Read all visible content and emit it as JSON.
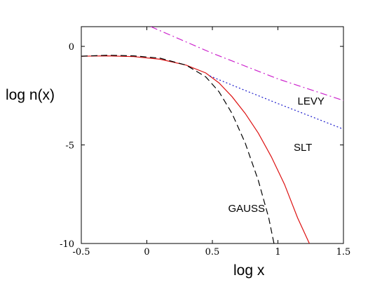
{
  "chart_data": {
    "type": "line",
    "xlabel": "log x",
    "ylabel": "log n(x)",
    "xlim": [
      -0.5,
      1.5
    ],
    "ylim": [
      -10,
      1
    ],
    "xticks": [
      {
        "value": -0.5,
        "label": "-0.5"
      },
      {
        "value": 0,
        "label": "0"
      },
      {
        "value": 0.5,
        "label": "0.5"
      },
      {
        "value": 1,
        "label": "1"
      },
      {
        "value": 1.5,
        "label": "1.5"
      }
    ],
    "yticks": [
      {
        "value": 0,
        "label": "0"
      },
      {
        "value": -5,
        "label": "-5"
      },
      {
        "value": -10,
        "label": "-10"
      }
    ],
    "grid": false,
    "series": [
      {
        "name": "SLT",
        "color": "#dd1111",
        "style": "solid",
        "label_at": [
          1.12,
          -5.3
        ],
        "points": [
          [
            -0.5,
            -0.5
          ],
          [
            -0.3,
            -0.48
          ],
          [
            -0.1,
            -0.52
          ],
          [
            0.1,
            -0.65
          ],
          [
            0.3,
            -0.95
          ],
          [
            0.45,
            -1.35
          ],
          [
            0.55,
            -1.85
          ],
          [
            0.65,
            -2.55
          ],
          [
            0.75,
            -3.4
          ],
          [
            0.85,
            -4.4
          ],
          [
            0.95,
            -5.6
          ],
          [
            1.05,
            -7.0
          ],
          [
            1.15,
            -8.7
          ],
          [
            1.24,
            -10.0
          ]
        ]
      },
      {
        "name": "GAUSS",
        "color": "#000000",
        "style": "dashed",
        "label_at": [
          0.62,
          -8.4
        ],
        "points": [
          [
            -0.5,
            -0.5
          ],
          [
            -0.3,
            -0.45
          ],
          [
            -0.1,
            -0.48
          ],
          [
            0.1,
            -0.6
          ],
          [
            0.3,
            -0.95
          ],
          [
            0.45,
            -1.55
          ],
          [
            0.55,
            -2.3
          ],
          [
            0.65,
            -3.4
          ],
          [
            0.75,
            -4.9
          ],
          [
            0.85,
            -6.8
          ],
          [
            0.93,
            -8.7
          ],
          [
            0.97,
            -10.0
          ]
        ]
      },
      {
        "name": "LEVY",
        "color": "#1a1acc",
        "style": "dotted",
        "label_at": [
          1.15,
          -2.95
        ],
        "points": [
          [
            0.48,
            -1.5
          ],
          [
            0.7,
            -2.1
          ],
          [
            1.0,
            -2.9
          ],
          [
            1.25,
            -3.55
          ],
          [
            1.5,
            -4.2
          ]
        ]
      },
      {
        "name": "",
        "color": "#cc22cc",
        "style": "dashdot",
        "label_at": null,
        "points": [
          [
            0.03,
            1.0
          ],
          [
            0.5,
            -0.35
          ],
          [
            1.0,
            -1.65
          ],
          [
            1.5,
            -2.75
          ]
        ]
      }
    ]
  }
}
